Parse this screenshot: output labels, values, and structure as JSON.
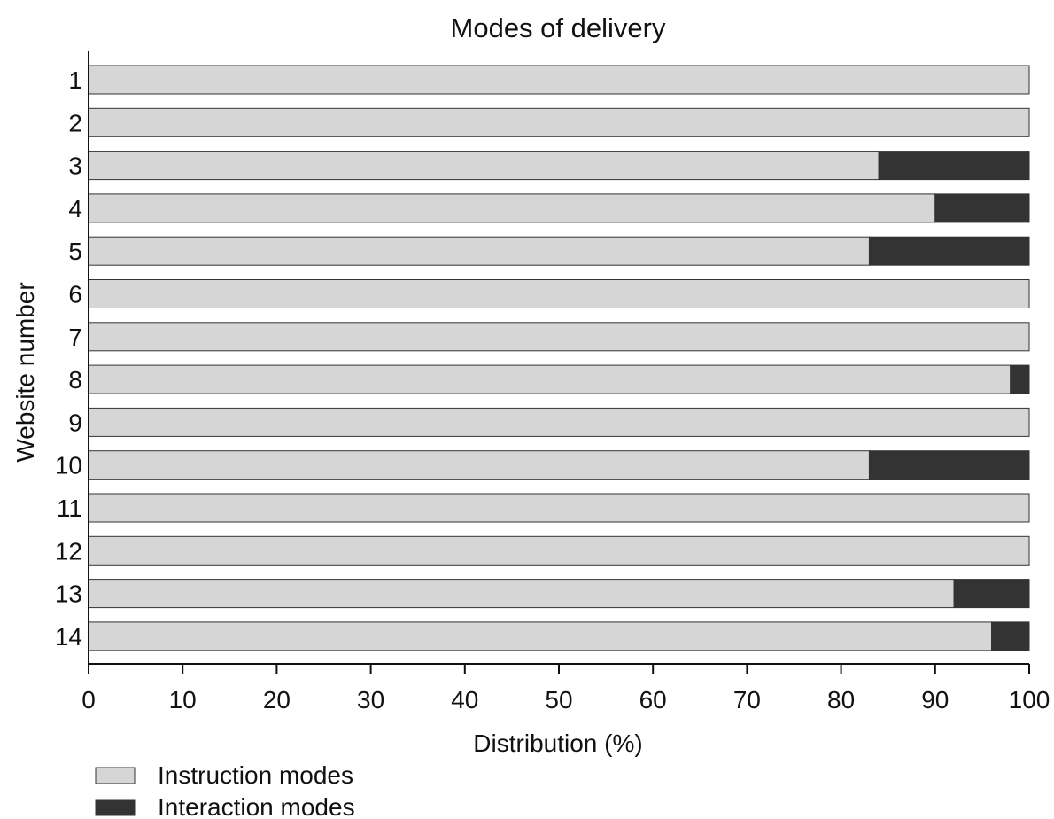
{
  "chart_data": {
    "type": "bar",
    "orientation": "horizontal",
    "stacked": true,
    "title": "Modes of delivery",
    "xlabel": "Distribution (%)",
    "ylabel": "Website number",
    "xlim": [
      0,
      100
    ],
    "xticks": [
      "0",
      "10",
      "20",
      "30",
      "40",
      "50",
      "60",
      "70",
      "80",
      "90",
      "100"
    ],
    "categories": [
      "1",
      "2",
      "3",
      "4",
      "5",
      "6",
      "7",
      "8",
      "9",
      "10",
      "11",
      "12",
      "13",
      "14"
    ],
    "series": [
      {
        "name": "Instruction modes",
        "color": "#d6d6d6",
        "values": [
          100,
          100,
          84,
          90,
          83,
          100,
          100,
          98,
          100,
          83,
          100,
          100,
          92,
          96
        ]
      },
      {
        "name": "Interaction modes",
        "color": "#333333",
        "values": [
          0,
          0,
          16,
          10,
          17,
          0,
          0,
          2,
          0,
          17,
          0,
          0,
          8,
          4
        ]
      }
    ],
    "legend": "bottom-left",
    "grid": false
  }
}
